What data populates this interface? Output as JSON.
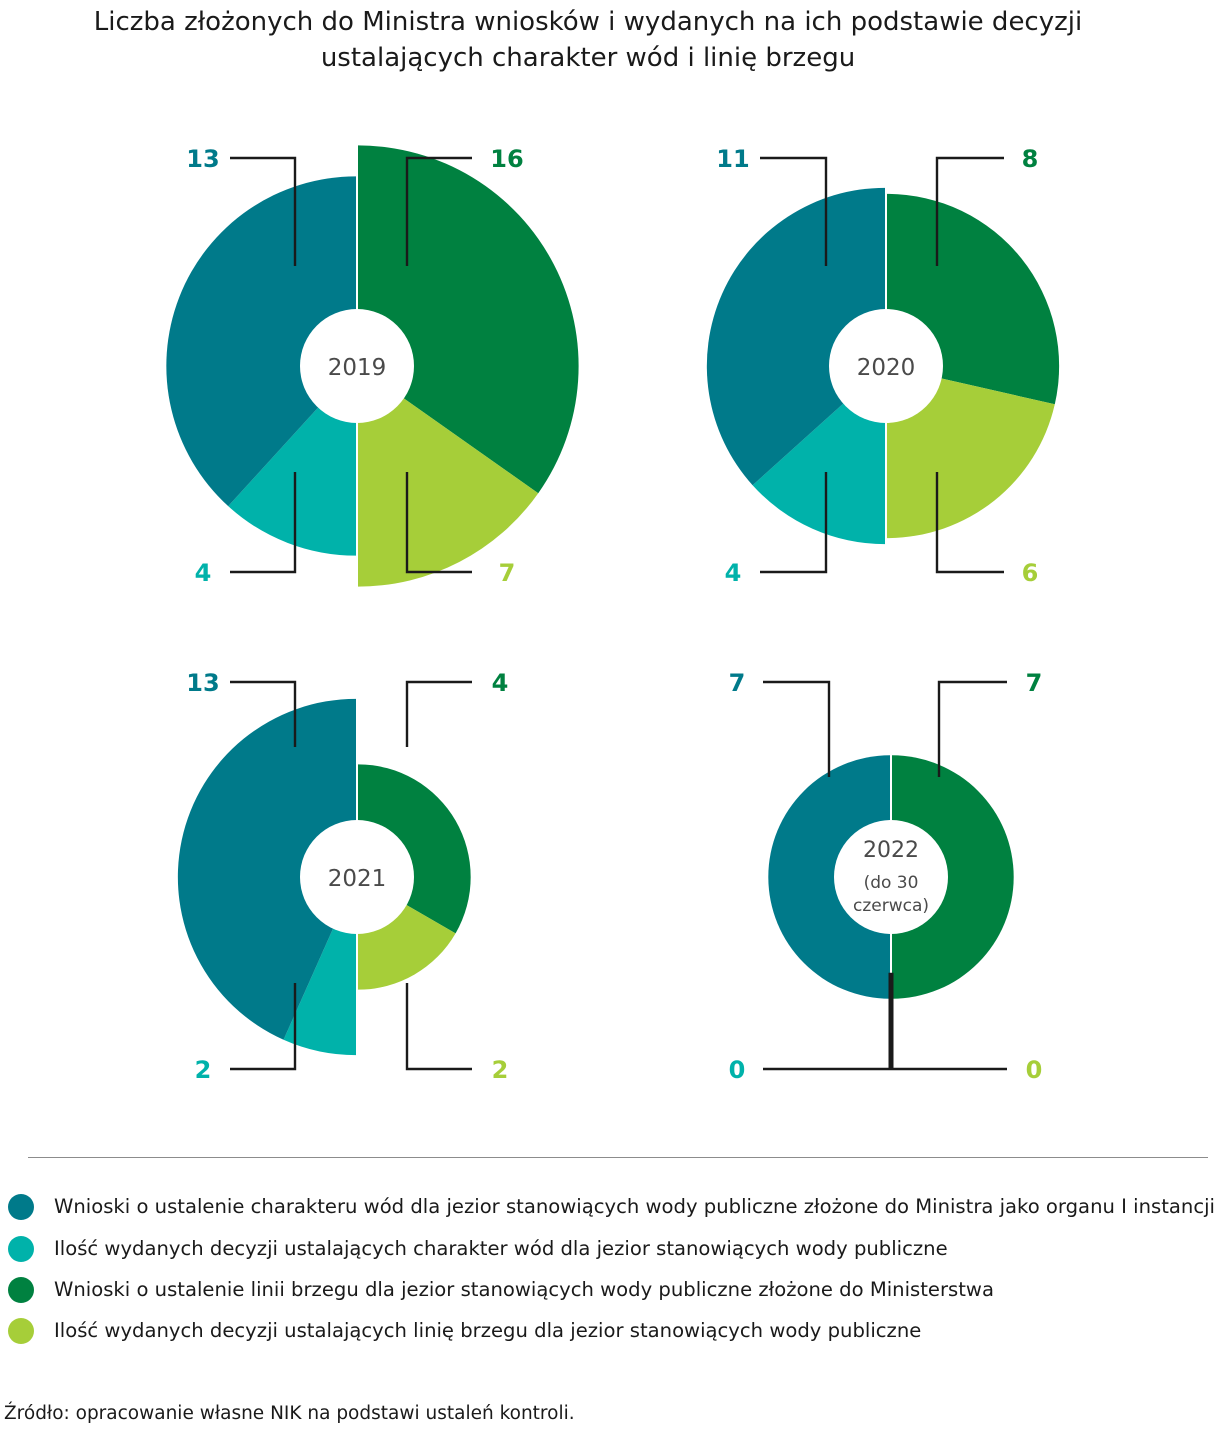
{
  "title": {
    "line1": "Liczba złożonych do Ministra wniosków i wydanych na ich podstawie decyzji",
    "line2": "ustalających charakter wód i linię brzegu"
  },
  "colors": {
    "teal_dark": "#007a8a",
    "teal_light": "#00b2aa",
    "green_dark": "#008140",
    "green_light": "#a6ce39"
  },
  "chart_data": [
    {
      "type": "pie",
      "center_label": [
        "2019"
      ],
      "series": [
        {
          "name": "Wnioski o ustalenie charakteru wód dla jezior stanowiących wody publiczne złożone do Ministra jako organu I instancji",
          "value": 13,
          "color": "#007a8a"
        },
        {
          "name": "Ilość wydanych decyzji ustalających charakter wód dla jezior stanowiących wody publiczne",
          "value": 4,
          "color": "#00b2aa"
        },
        {
          "name": "Wnioski o ustalenie linii brzegu dla jezior stanowiących wody publiczne złożone do Ministerstwa",
          "value": 16,
          "color": "#008140"
        },
        {
          "name": "Ilość wydanych decyzji ustalających linię brzegu dla jezior stanowiących wody publiczne",
          "value": 7,
          "color": "#a6ce39"
        }
      ]
    },
    {
      "type": "pie",
      "center_label": [
        "2020"
      ],
      "series": [
        {
          "name": "Wnioski o ustalenie charakteru wód dla jezior stanowiących wody publiczne złożone do Ministra jako organu I instancji",
          "value": 11,
          "color": "#007a8a"
        },
        {
          "name": "Ilość wydanych decyzji ustalających charakter wód dla jezior stanowiących wody publiczne",
          "value": 4,
          "color": "#00b2aa"
        },
        {
          "name": "Wnioski o ustalenie linii brzegu dla jezior stanowiących wody publiczne złożone do Ministerstwa",
          "value": 8,
          "color": "#008140"
        },
        {
          "name": "Ilość wydanych decyzji ustalających linię brzegu dla jezior stanowiących wody publiczne",
          "value": 6,
          "color": "#a6ce39"
        }
      ]
    },
    {
      "type": "pie",
      "center_label": [
        "2021"
      ],
      "series": [
        {
          "name": "Wnioski o ustalenie charakteru wód dla jezior stanowiących wody publiczne złożone do Ministra jako organu I instancji",
          "value": 13,
          "color": "#007a8a"
        },
        {
          "name": "Ilość wydanych decyzji ustalających charakter wód dla jezior stanowiących wody publiczne",
          "value": 2,
          "color": "#00b2aa"
        },
        {
          "name": "Wnioski o ustalenie linii brzegu dla jezior stanowiących wody publiczne złożone do Ministerstwa",
          "value": 4,
          "color": "#008140"
        },
        {
          "name": "Ilość wydanych decyzji ustalających linię brzegu dla jezior stanowiących wody publiczne",
          "value": 2,
          "color": "#a6ce39"
        }
      ]
    },
    {
      "type": "pie",
      "center_label": [
        "2022",
        "(do 30",
        "czerwca)"
      ],
      "series": [
        {
          "name": "Wnioski o ustalenie charakteru wód dla jezior stanowiących wody publiczne złożone do Ministra jako organu I instancji",
          "value": 7,
          "color": "#007a8a"
        },
        {
          "name": "Ilość wydanych decyzji ustalających charakter wód dla jezior stanowiących wody publiczne",
          "value": 0,
          "color": "#00b2aa"
        },
        {
          "name": "Wnioski o ustalenie linii brzegu dla jezior stanowiących wody publiczne złożone do Ministerstwa",
          "value": 7,
          "color": "#008140"
        },
        {
          "name": "Ilość wydanych decyzji ustalających linię brzegu dla jezior stanowiących wody publiczne",
          "value": 0,
          "color": "#a6ce39"
        }
      ]
    }
  ],
  "legend": [
    {
      "label": "Wnioski o ustalenie charakteru wód dla jezior stanowiących wody publiczne złożone do Ministra jako organu I instancji",
      "color": "#007a8a"
    },
    {
      "label": "Ilość wydanych decyzji ustalających charakter wód dla jezior stanowiących wody publiczne",
      "color": "#00b2aa"
    },
    {
      "label": "Wnioski o ustalenie linii brzegu dla jezior stanowiących wody publiczne złożone do Ministerstwa",
      "color": "#008140"
    },
    {
      "label": "Ilość wydanych decyzji ustalających linię brzegu dla jezior stanowiących wody publiczne",
      "color": "#a6ce39"
    }
  ],
  "source": "Źródło: opracowanie własne NIK na podstawi ustaleń kontroli."
}
